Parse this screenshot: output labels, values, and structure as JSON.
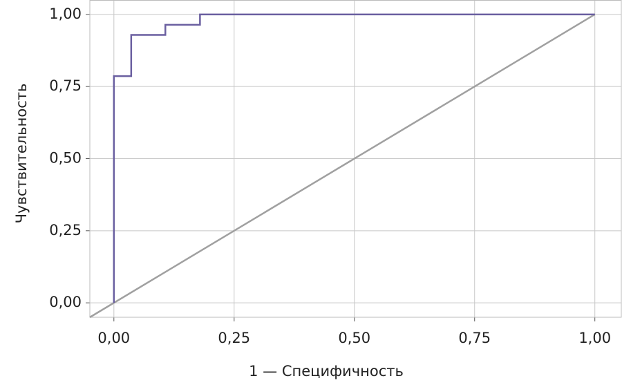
{
  "chart_data": {
    "type": "line",
    "x_label": "1 — Специфичность",
    "y_label": "Чувствительность",
    "xlim": [
      -0.05,
      1.055
    ],
    "ylim": [
      -0.05,
      1.05
    ],
    "xticks": [
      {
        "value": 0,
        "label": "0,00"
      },
      {
        "value": 0.25,
        "label": "0,25"
      },
      {
        "value": 0.5,
        "label": "0,50"
      },
      {
        "value": 0.75,
        "label": "0,75"
      },
      {
        "value": 1,
        "label": "1,00"
      }
    ],
    "yticks": [
      {
        "value": 0,
        "label": "0,00"
      },
      {
        "value": 0.25,
        "label": "0,25"
      },
      {
        "value": 0.5,
        "label": "0,50"
      },
      {
        "value": 0.75,
        "label": "0,75"
      },
      {
        "value": 1,
        "label": "1,00"
      }
    ],
    "grid": true,
    "series": [
      {
        "color": "#6a5fa0",
        "x": [
          0,
          0,
          0.036,
          0.036,
          0.107,
          0.107,
          0.179,
          0.179,
          1
        ],
        "values": [
          0,
          0.786,
          0.786,
          0.929,
          0.929,
          0.964,
          0.964,
          1,
          1
        ]
      },
      {
        "color": "#a0a0a0",
        "x": [
          -0.05,
          1
        ],
        "values": [
          -0.05,
          1
        ]
      }
    ]
  }
}
